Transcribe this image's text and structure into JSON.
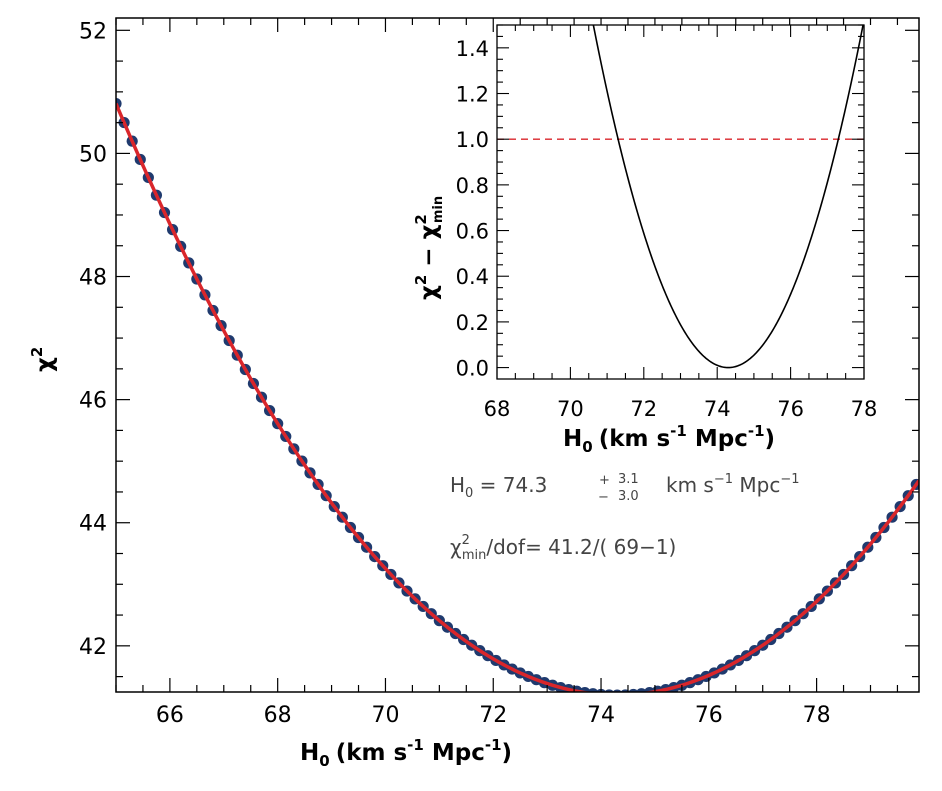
{
  "chart_data": [
    {
      "id": "main",
      "type": "scatter",
      "title": "",
      "xlabel": "H",
      "xlabel_sub": "0",
      "xlabel_units": "(km s",
      "xlabel_units_exp": "-1",
      "xlabel_units_mid": " Mpc",
      "xlabel_units_exp2": "-1",
      "xlabel_units_end": ")",
      "ylabel": "χ",
      "ylabel_sup": "2",
      "xlim": [
        65,
        79.9
      ],
      "ylim": [
        41.25,
        52.2
      ],
      "xticks": [
        66,
        68,
        70,
        72,
        74,
        76,
        78
      ],
      "yticks": [
        42,
        44,
        46,
        48,
        50,
        52
      ],
      "grid": false,
      "series": [
        {
          "name": "chi2 grid points",
          "kind": "scatter",
          "color": "#1f3a6e",
          "model": {
            "form": "quadratic",
            "x0": 74.3,
            "ymin": 41.2,
            "curvature": 0.1111
          },
          "x_start": 65.0,
          "x_end": 79.9,
          "x_step": 0.15
        },
        {
          "name": "fit",
          "kind": "line",
          "color": "#d9262b",
          "model": {
            "form": "quadratic",
            "x0": 74.3,
            "ymin": 41.2,
            "curvature": 0.1111
          }
        }
      ],
      "annotations": {
        "h0_label": "H",
        "h0_sub": "0",
        "h0_eq": " =  74.3",
        "h0_plus": "+",
        "h0_minus": "−",
        "h0_err_up": "3.1",
        "h0_err_down": "3.0",
        "h0_units": "km s",
        "h0_units_exp": "−1",
        "h0_units_mid": " Mpc",
        "h0_units_exp2": "−1",
        "chi_label": "χ",
        "chi_sup": "2",
        "chi_sub": "min",
        "chi_rest": "/dof=  41.2/( 69−1)"
      }
    },
    {
      "id": "inset",
      "type": "line",
      "xlim": [
        68,
        78
      ],
      "ylim": [
        -0.05,
        1.5
      ],
      "xticks": [
        68,
        70,
        72,
        74,
        76,
        78
      ],
      "yticks": [
        0.0,
        0.2,
        0.4,
        0.6,
        0.8,
        1.0,
        1.2,
        1.4
      ],
      "ytick_labels": [
        "0.0",
        "0.2",
        "0.4",
        "0.6",
        "0.8",
        "1.0",
        "1.2",
        "1.4"
      ],
      "xlabel": "H",
      "xlabel_sub": "0",
      "xlabel_units": "(km s",
      "xlabel_units_exp": "-1",
      "xlabel_units_mid": " Mpc",
      "xlabel_units_exp2": "-1",
      "xlabel_units_end": ")",
      "ylabel": "χ",
      "ylabel_sup": "2",
      "ylabel_mid": " − χ",
      "ylabel_sup2": "2",
      "ylabel_sub2": "min",
      "series": [
        {
          "name": "delta chi2",
          "color": "#000000",
          "model": {
            "form": "quadratic",
            "x0": 74.3,
            "ymin": 0,
            "curvature": 0.1111
          }
        }
      ],
      "hline": {
        "y": 1.0,
        "color": "#d9262b",
        "dash": true
      }
    }
  ]
}
